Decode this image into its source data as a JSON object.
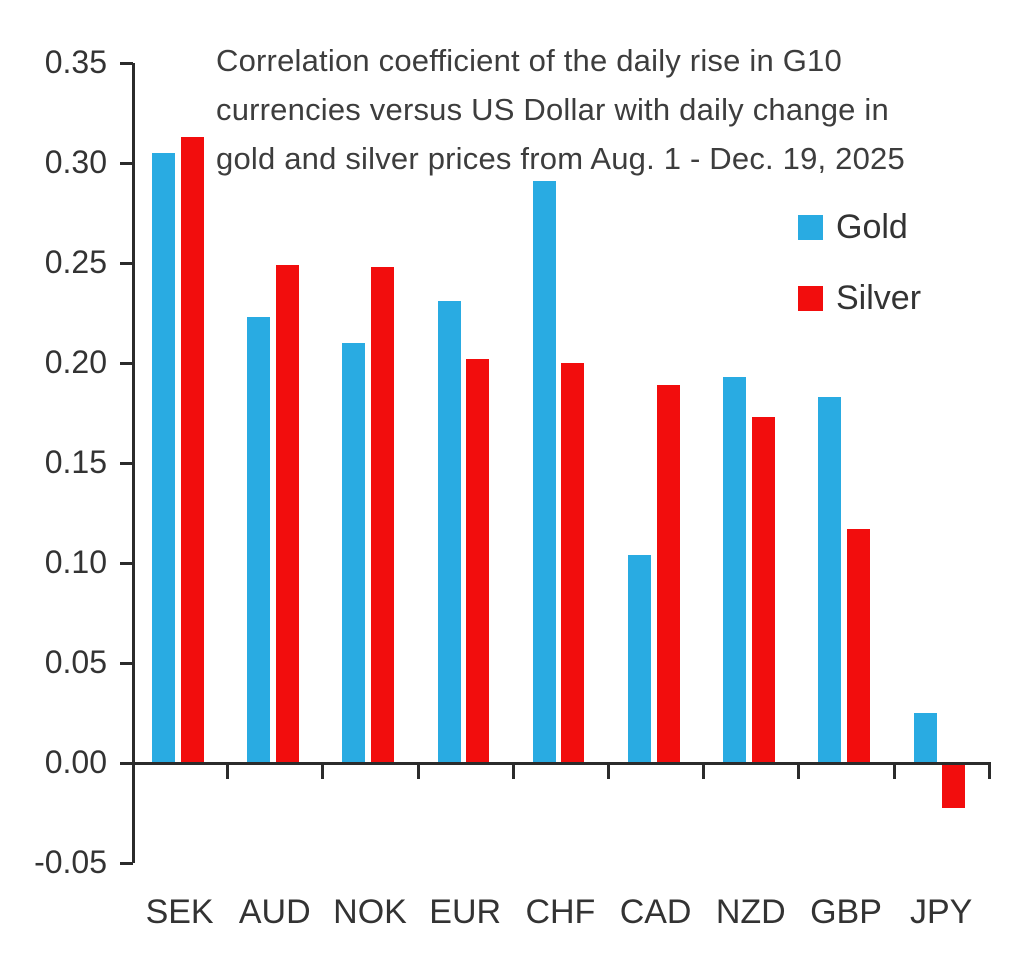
{
  "chart_data": {
    "type": "bar",
    "title": "Correlation coefficient of the daily rise in G10 currencies versus US Dollar with daily change in gold and silver prices from Aug. 1 - Dec. 19, 2025",
    "title_lines": [
      "Correlation coefficient of the daily rise in G10",
      "currencies versus US Dollar with daily change in",
      "gold and silver prices from Aug. 1 - Dec. 19, 2025"
    ],
    "categories": [
      "SEK",
      "AUD",
      "NOK",
      "EUR",
      "CHF",
      "CAD",
      "NZD",
      "GBP",
      "JPY"
    ],
    "series": [
      {
        "name": "Gold",
        "color": "#29ABE2",
        "values": [
          0.305,
          0.223,
          0.21,
          0.231,
          0.291,
          0.104,
          0.193,
          0.183,
          0.025
        ]
      },
      {
        "name": "Silver",
        "color": "#F20D0D",
        "values": [
          0.313,
          0.249,
          0.248,
          0.202,
          0.2,
          0.189,
          0.173,
          0.117,
          -0.022
        ]
      }
    ],
    "y_axis": {
      "min": -0.05,
      "max": 0.35,
      "step": 0.05,
      "tick_labels": [
        "0.35",
        "0.30",
        "0.25",
        "0.20",
        "0.15",
        "0.10",
        "0.05",
        "0.00",
        "-0.05"
      ]
    },
    "xlabel": "",
    "ylabel": "",
    "grid": false,
    "legend": {
      "position": "top-right",
      "entries": [
        {
          "label": "Gold",
          "color": "#29ABE2"
        },
        {
          "label": "Silver",
          "color": "#F20D0D"
        }
      ]
    }
  }
}
